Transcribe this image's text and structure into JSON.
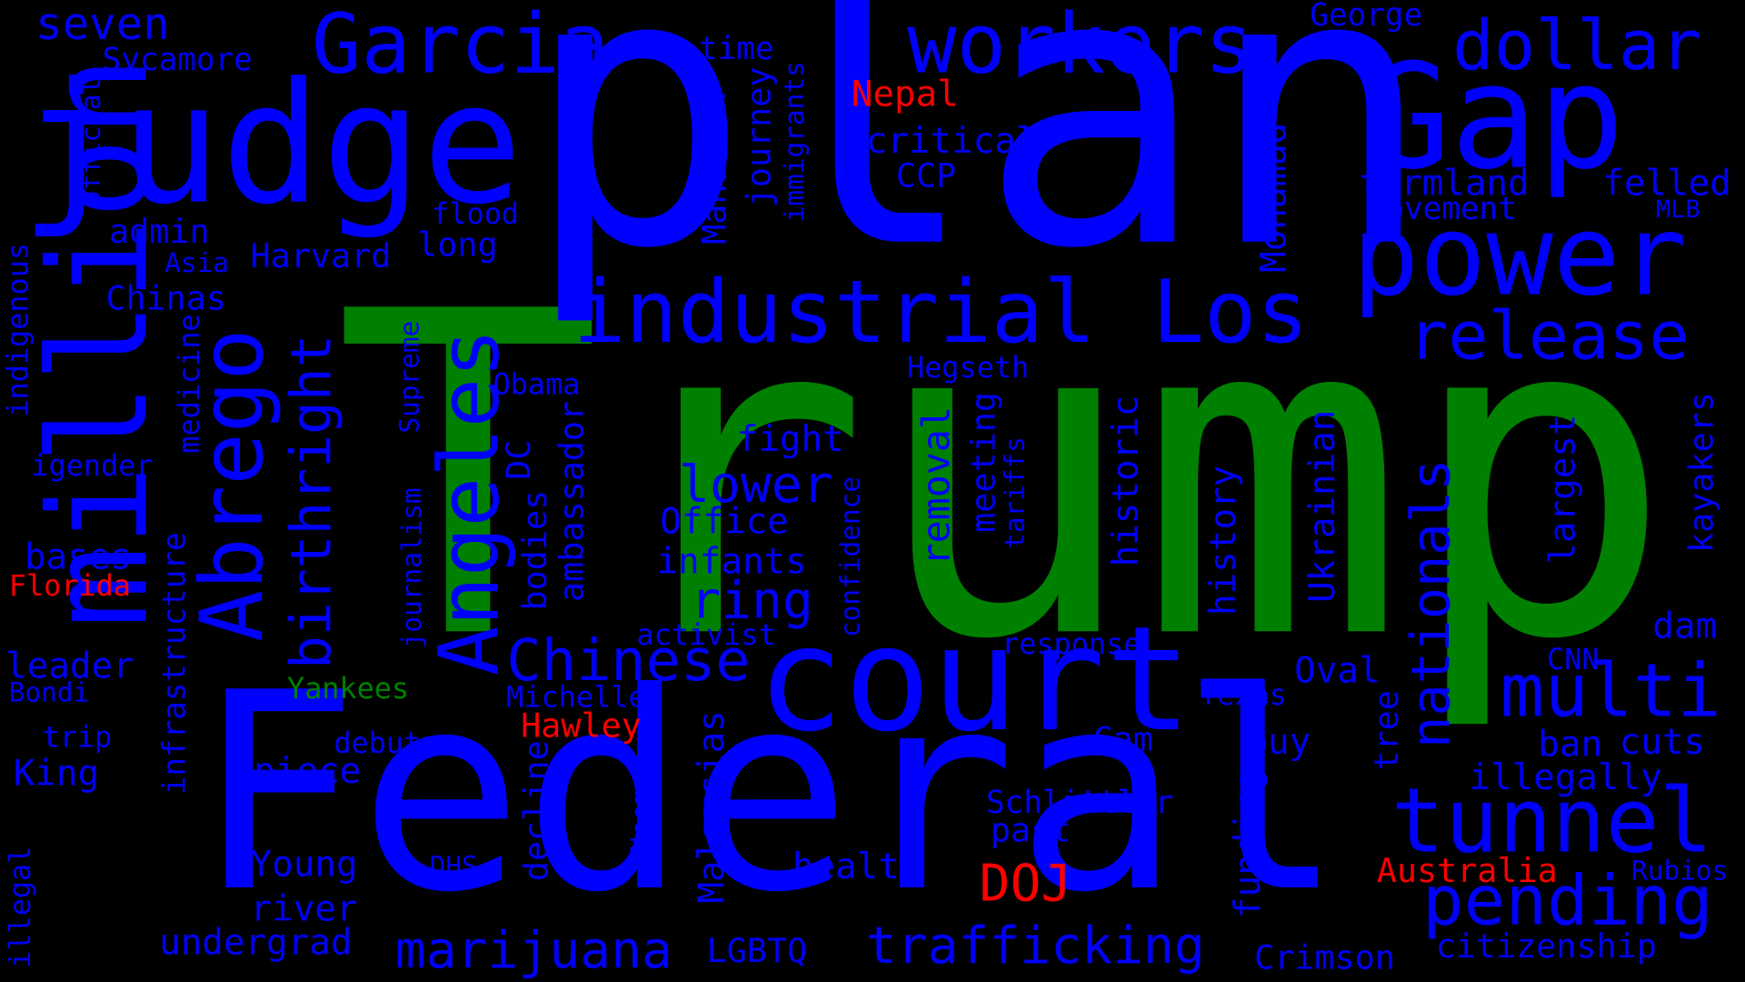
{
  "colors": {
    "background": "#000000",
    "blue": "#0000ff",
    "green": "#008000",
    "red": "#ff0000"
  },
  "words": [
    {
      "text": "Trump",
      "color": "green"
    },
    {
      "text": "plan",
      "color": "blue"
    },
    {
      "text": "Federal",
      "color": "blue"
    },
    {
      "text": "million",
      "color": "blue"
    },
    {
      "text": "judge",
      "color": "blue"
    },
    {
      "text": "court",
      "color": "blue"
    },
    {
      "text": "Gap",
      "color": "blue"
    },
    {
      "text": "power",
      "color": "blue"
    },
    {
      "text": "industrial",
      "color": "blue"
    },
    {
      "text": "Los",
      "color": "blue"
    },
    {
      "text": "Angeles",
      "color": "blue"
    },
    {
      "text": "Abrego",
      "color": "blue"
    },
    {
      "text": "Garcia",
      "color": "blue"
    },
    {
      "text": "workers",
      "color": "blue"
    },
    {
      "text": "dollar",
      "color": "blue"
    },
    {
      "text": "release",
      "color": "blue"
    },
    {
      "text": "multi",
      "color": "blue"
    },
    {
      "text": "tunnel",
      "color": "blue"
    },
    {
      "text": "pending",
      "color": "blue"
    },
    {
      "text": "Chinese",
      "color": "blue"
    },
    {
      "text": "trafficking",
      "color": "blue"
    },
    {
      "text": "marijuana",
      "color": "blue"
    },
    {
      "text": "birthright",
      "color": "blue"
    },
    {
      "text": "nationals",
      "color": "blue"
    },
    {
      "text": "seven",
      "color": "blue"
    },
    {
      "text": "lower",
      "color": "blue"
    },
    {
      "text": "ring",
      "color": "blue"
    },
    {
      "text": "DOJ",
      "color": "red"
    },
    {
      "text": "Nepal",
      "color": "red"
    },
    {
      "text": "Florida",
      "color": "red"
    },
    {
      "text": "Hawley",
      "color": "red"
    },
    {
      "text": "Australia",
      "color": "red"
    },
    {
      "text": "Yankees",
      "color": "green"
    },
    {
      "text": "George",
      "color": "blue"
    },
    {
      "text": "Sycamore",
      "color": "blue"
    },
    {
      "text": "official",
      "color": "blue"
    },
    {
      "text": "time",
      "color": "blue"
    },
    {
      "text": "critical",
      "color": "blue"
    },
    {
      "text": "CCP",
      "color": "blue"
    },
    {
      "text": "farmland",
      "color": "blue"
    },
    {
      "text": "felled",
      "color": "blue"
    },
    {
      "text": "movement",
      "color": "blue"
    },
    {
      "text": "MLB",
      "color": "blue"
    },
    {
      "text": "admin",
      "color": "blue"
    },
    {
      "text": "flood",
      "color": "blue"
    },
    {
      "text": "Harvard",
      "color": "blue"
    },
    {
      "text": "long",
      "color": "blue"
    },
    {
      "text": "Asia",
      "color": "blue"
    },
    {
      "text": "Chinas",
      "color": "blue"
    },
    {
      "text": "Mahathir",
      "color": "blue"
    },
    {
      "text": "journey",
      "color": "blue"
    },
    {
      "text": "immigrants",
      "color": "blue"
    },
    {
      "text": "proposed",
      "color": "blue"
    },
    {
      "text": "Mohamad",
      "color": "blue"
    },
    {
      "text": "indigenous",
      "color": "blue"
    },
    {
      "text": "medicine",
      "color": "blue"
    },
    {
      "text": "Supreme",
      "color": "blue"
    },
    {
      "text": "Obama",
      "color": "blue"
    },
    {
      "text": "Hegseth",
      "color": "blue"
    },
    {
      "text": "fight",
      "color": "blue"
    },
    {
      "text": "igender",
      "color": "blue"
    },
    {
      "text": "DC",
      "color": "blue"
    },
    {
      "text": "Office",
      "color": "blue"
    },
    {
      "text": "removal",
      "color": "blue"
    },
    {
      "text": "meeting",
      "color": "blue"
    },
    {
      "text": "tariffs",
      "color": "blue"
    },
    {
      "text": "historic",
      "color": "blue"
    },
    {
      "text": "history",
      "color": "blue"
    },
    {
      "text": "Ukrainian",
      "color": "blue"
    },
    {
      "text": "largest",
      "color": "blue"
    },
    {
      "text": "kayakers",
      "color": "blue"
    },
    {
      "text": "bases",
      "color": "blue"
    },
    {
      "text": "infants",
      "color": "blue"
    },
    {
      "text": "bodies",
      "color": "blue"
    },
    {
      "text": "ambassador",
      "color": "blue"
    },
    {
      "text": "confidence",
      "color": "blue"
    },
    {
      "text": "journalism",
      "color": "blue"
    },
    {
      "text": "infrastructure",
      "color": "blue"
    },
    {
      "text": "activist",
      "color": "blue"
    },
    {
      "text": "response",
      "color": "blue"
    },
    {
      "text": "dam",
      "color": "blue"
    },
    {
      "text": "leader",
      "color": "blue"
    },
    {
      "text": "Bondi",
      "color": "blue"
    },
    {
      "text": "Michelle",
      "color": "blue"
    },
    {
      "text": "Oval",
      "color": "blue"
    },
    {
      "text": "Texas",
      "color": "blue"
    },
    {
      "text": "CNN",
      "color": "blue"
    },
    {
      "text": "trip",
      "color": "blue"
    },
    {
      "text": "debut",
      "color": "blue"
    },
    {
      "text": "Cam",
      "color": "blue"
    },
    {
      "text": "buy",
      "color": "blue"
    },
    {
      "text": "tree",
      "color": "blue"
    },
    {
      "text": "ban",
      "color": "blue"
    },
    {
      "text": "cuts",
      "color": "blue"
    },
    {
      "text": "King",
      "color": "blue"
    },
    {
      "text": "piece",
      "color": "blue"
    },
    {
      "text": "Malaysias",
      "color": "blue"
    },
    {
      "text": "decline",
      "color": "blue"
    },
    {
      "text": "Schlittler",
      "color": "blue"
    },
    {
      "text": "illegally",
      "color": "blue"
    },
    {
      "text": "past",
      "color": "blue"
    },
    {
      "text": "Noem",
      "color": "blue"
    },
    {
      "text": "illegal",
      "color": "blue"
    },
    {
      "text": "Young",
      "color": "blue"
    },
    {
      "text": "DHS",
      "color": "blue"
    },
    {
      "text": "health",
      "color": "blue"
    },
    {
      "text": "funding",
      "color": "blue"
    },
    {
      "text": "Rubios",
      "color": "blue"
    },
    {
      "text": "river",
      "color": "blue"
    },
    {
      "text": "undergrad",
      "color": "blue"
    },
    {
      "text": "LGBTQ",
      "color": "blue"
    },
    {
      "text": "Crimson",
      "color": "blue"
    },
    {
      "text": "citizenship",
      "color": "blue"
    }
  ]
}
